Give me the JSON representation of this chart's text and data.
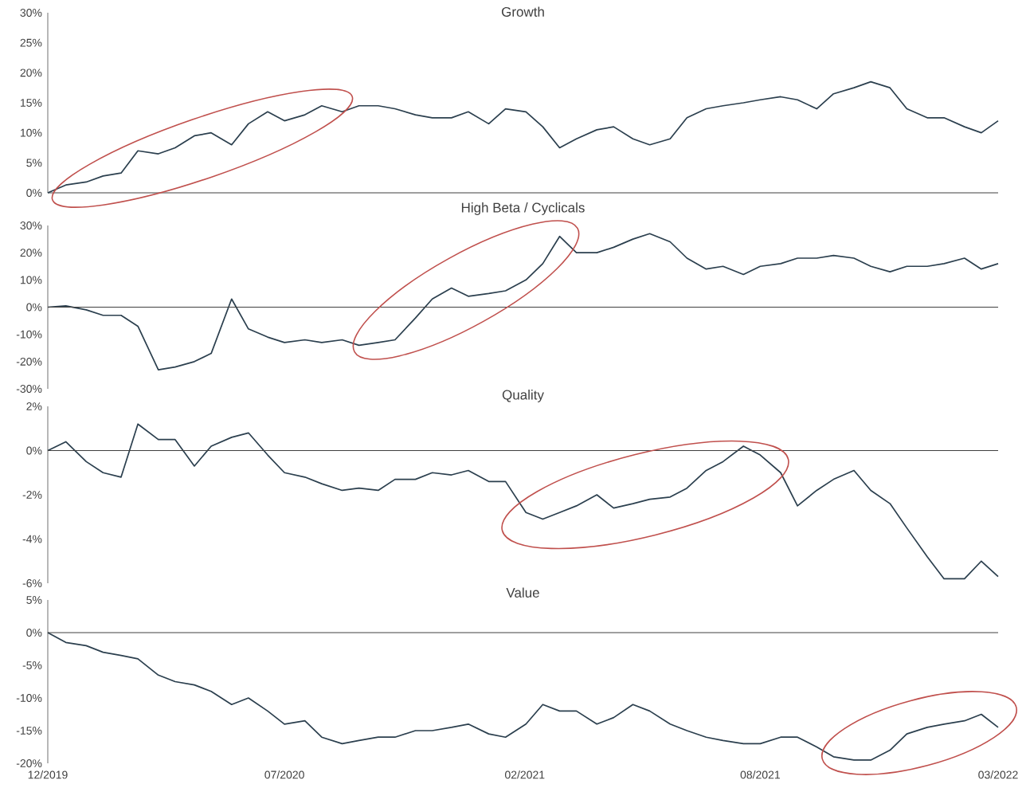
{
  "chart_data": [
    {
      "type": "line",
      "title": "Growth",
      "color": "#2b3f4e",
      "tick_labels": "y",
      "x": [
        "2019-12-31",
        "2020-01-15",
        "2020-02-01",
        "2020-02-15",
        "2020-03-01",
        "2020-03-15",
        "2020-04-01",
        "2020-04-15",
        "2020-05-01",
        "2020-05-15",
        "2020-06-01",
        "2020-06-15",
        "2020-07-01",
        "2020-07-15",
        "2020-08-01",
        "2020-08-15",
        "2020-09-01",
        "2020-09-15",
        "2020-10-01",
        "2020-10-15",
        "2020-11-01",
        "2020-11-15",
        "2020-12-01",
        "2020-12-15",
        "2021-01-01",
        "2021-01-15",
        "2021-02-01",
        "2021-02-15",
        "2021-03-01",
        "2021-03-15",
        "2021-04-01",
        "2021-04-15",
        "2021-05-01",
        "2021-05-15",
        "2021-06-01",
        "2021-06-15",
        "2021-07-01",
        "2021-07-15",
        "2021-08-01",
        "2021-08-15",
        "2021-09-01",
        "2021-09-15",
        "2021-10-01",
        "2021-10-15",
        "2021-11-01",
        "2021-11-15",
        "2021-12-01",
        "2021-12-15",
        "2022-01-01",
        "2022-01-15",
        "2022-02-01",
        "2022-02-15",
        "2022-03-01"
      ],
      "values": [
        0,
        1.3,
        1.8,
        2.8,
        3.3,
        7,
        6.5,
        7.5,
        9.5,
        10,
        8,
        11.5,
        13.5,
        12,
        13,
        14.5,
        13.5,
        14.5,
        14.5,
        14,
        13,
        12.5,
        12.5,
        13.5,
        11.5,
        14,
        13.5,
        11,
        7.5,
        9,
        10.5,
        11,
        9,
        8,
        9,
        12.5,
        14,
        14.5,
        15,
        15.5,
        16,
        15.5,
        14,
        16.5,
        17.5,
        18.5,
        17.5,
        14,
        12.5,
        12.5,
        11,
        10,
        12
      ],
      "xlim": [
        "2019-12-31",
        "2022-03-01"
      ],
      "ylim": [
        0,
        30
      ],
      "yticks": [
        {
          "value": 0,
          "label": "0%"
        },
        {
          "value": 5,
          "label": "5%"
        },
        {
          "value": 10,
          "label": "10%"
        },
        {
          "value": 15,
          "label": "15%"
        },
        {
          "value": 20,
          "label": "20%"
        },
        {
          "value": 25,
          "label": "25%"
        },
        {
          "value": 30,
          "label": "30%"
        }
      ],
      "grid": false
    },
    {
      "type": "line",
      "title": "High Beta / Cyclicals",
      "color": "#2b3f4e",
      "tick_labels": "y",
      "x": [
        "2019-12-31",
        "2020-01-15",
        "2020-02-01",
        "2020-02-15",
        "2020-03-01",
        "2020-03-15",
        "2020-04-01",
        "2020-04-15",
        "2020-05-01",
        "2020-05-15",
        "2020-06-01",
        "2020-06-15",
        "2020-07-01",
        "2020-07-15",
        "2020-08-01",
        "2020-08-15",
        "2020-09-01",
        "2020-09-15",
        "2020-10-01",
        "2020-10-15",
        "2020-11-01",
        "2020-11-15",
        "2020-12-01",
        "2020-12-15",
        "2021-01-01",
        "2021-01-15",
        "2021-02-01",
        "2021-02-15",
        "2021-03-01",
        "2021-03-15",
        "2021-04-01",
        "2021-04-15",
        "2021-05-01",
        "2021-05-15",
        "2021-06-01",
        "2021-06-15",
        "2021-07-01",
        "2021-07-15",
        "2021-08-01",
        "2021-08-15",
        "2021-09-01",
        "2021-09-15",
        "2021-10-01",
        "2021-10-15",
        "2021-11-01",
        "2021-11-15",
        "2021-12-01",
        "2021-12-15",
        "2022-01-01",
        "2022-01-15",
        "2022-02-01",
        "2022-02-15",
        "2022-03-01"
      ],
      "values": [
        0,
        0.5,
        -1,
        -3,
        -3,
        -7,
        -23,
        -22,
        -20,
        -17,
        3,
        -8,
        -11,
        -13,
        -12,
        -13,
        -12,
        -14,
        -13,
        -12,
        -4,
        3,
        7,
        4,
        5,
        6,
        10,
        16,
        26,
        20,
        20,
        22,
        25,
        27,
        24,
        18,
        14,
        15,
        12,
        15,
        16,
        18,
        18,
        19,
        18,
        15,
        13,
        15,
        15,
        16,
        18,
        14,
        16
      ],
      "xlim": [
        "2019-12-31",
        "2022-03-01"
      ],
      "ylim": [
        -30,
        30
      ],
      "yticks": [
        {
          "value": -30,
          "label": "-30%"
        },
        {
          "value": -20,
          "label": "-20%"
        },
        {
          "value": -10,
          "label": "-10%"
        },
        {
          "value": 0,
          "label": "0%"
        },
        {
          "value": 10,
          "label": "10%"
        },
        {
          "value": 20,
          "label": "20%"
        },
        {
          "value": 30,
          "label": "30%"
        }
      ],
      "ref_lines": [
        {
          "axis": "y",
          "value": 0,
          "color": "#404040"
        }
      ]
    },
    {
      "type": "line",
      "title": "Quality",
      "color": "#2b3f4e",
      "tick_labels": "y",
      "x": [
        "2019-12-31",
        "2020-01-15",
        "2020-02-01",
        "2020-02-15",
        "2020-03-01",
        "2020-03-15",
        "2020-04-01",
        "2020-04-15",
        "2020-05-01",
        "2020-05-15",
        "2020-06-01",
        "2020-06-15",
        "2020-07-01",
        "2020-07-15",
        "2020-08-01",
        "2020-08-15",
        "2020-09-01",
        "2020-09-15",
        "2020-10-01",
        "2020-10-15",
        "2020-11-01",
        "2020-11-15",
        "2020-12-01",
        "2020-12-15",
        "2021-01-01",
        "2021-01-15",
        "2021-02-01",
        "2021-02-15",
        "2021-03-01",
        "2021-03-15",
        "2021-04-01",
        "2021-04-15",
        "2021-05-01",
        "2021-05-15",
        "2021-06-01",
        "2021-06-15",
        "2021-07-01",
        "2021-07-15",
        "2021-08-01",
        "2021-08-15",
        "2021-09-01",
        "2021-09-15",
        "2021-10-01",
        "2021-10-15",
        "2021-11-01",
        "2021-11-15",
        "2021-12-01",
        "2021-12-15",
        "2022-01-01",
        "2022-01-15",
        "2022-02-01",
        "2022-02-15",
        "2022-03-01"
      ],
      "values": [
        0,
        0.4,
        -0.5,
        -1,
        -1.2,
        1.2,
        0.5,
        0.5,
        -0.7,
        0.2,
        0.6,
        0.8,
        -0.2,
        -1,
        -1.2,
        -1.5,
        -1.8,
        -1.7,
        -1.8,
        -1.3,
        -1.3,
        -1,
        -1.1,
        -0.9,
        -1.4,
        -1.4,
        -2.8,
        -3.1,
        -2.8,
        -2.5,
        -2,
        -2.6,
        -2.4,
        -2.2,
        -2.1,
        -1.7,
        -0.9,
        -0.5,
        0.2,
        -0.2,
        -1,
        -2.5,
        -1.8,
        -1.3,
        -0.9,
        -1.8,
        -2.4,
        -3.5,
        -4.8,
        -5.8,
        -5.8,
        -5,
        -5.7
      ],
      "xlim": [
        "2019-12-31",
        "2022-03-01"
      ],
      "ylim": [
        -6,
        2
      ],
      "yticks": [
        {
          "value": -6,
          "label": "-6%"
        },
        {
          "value": -4,
          "label": "-4%"
        },
        {
          "value": -2,
          "label": "-2%"
        },
        {
          "value": 0,
          "label": "0%"
        },
        {
          "value": 2,
          "label": "2%"
        }
      ],
      "ref_lines": [
        {
          "axis": "y",
          "value": 0,
          "color": "#404040"
        }
      ]
    },
    {
      "type": "line",
      "title": "Value",
      "color": "#2b3f4e",
      "x": [
        "2019-12-31",
        "2020-01-15",
        "2020-02-01",
        "2020-02-15",
        "2020-03-01",
        "2020-03-15",
        "2020-04-01",
        "2020-04-15",
        "2020-05-01",
        "2020-05-15",
        "2020-06-01",
        "2020-06-15",
        "2020-07-01",
        "2020-07-15",
        "2020-08-01",
        "2020-08-15",
        "2020-09-01",
        "2020-09-15",
        "2020-10-01",
        "2020-10-15",
        "2020-11-01",
        "2020-11-15",
        "2020-12-01",
        "2020-12-15",
        "2021-01-01",
        "2021-01-15",
        "2021-02-01",
        "2021-02-15",
        "2021-03-01",
        "2021-03-15",
        "2021-04-01",
        "2021-04-15",
        "2021-05-01",
        "2021-05-15",
        "2021-06-01",
        "2021-06-15",
        "2021-07-01",
        "2021-07-15",
        "2021-08-01",
        "2021-08-15",
        "2021-09-01",
        "2021-09-15",
        "2021-10-01",
        "2021-10-15",
        "2021-11-01",
        "2021-11-15",
        "2021-12-01",
        "2021-12-15",
        "2022-01-01",
        "2022-01-15",
        "2022-02-01",
        "2022-02-15",
        "2022-03-01"
      ],
      "values": [
        0,
        -1.5,
        -2,
        -3,
        -3.5,
        -4,
        -6.5,
        -7.5,
        -8,
        -9,
        -11,
        -10,
        -12,
        -14,
        -13.5,
        -16,
        -17,
        -16.5,
        -16,
        -16,
        -15,
        -15,
        -14.5,
        -14,
        -15.5,
        -16,
        -14,
        -11,
        -12,
        -12,
        -14,
        -13,
        -11,
        -12,
        -14,
        -15,
        -16,
        -16.5,
        -17,
        -17,
        -16,
        -16,
        -17.5,
        -19,
        -19.5,
        -19.5,
        -18,
        -15.5,
        -14.5,
        -14,
        -13.5,
        -12.5,
        -14.5
      ],
      "xlim": [
        "2019-12-31",
        "2022-03-01"
      ],
      "ylim": [
        -20,
        5
      ],
      "xticks": [
        {
          "value": "2019-12-31",
          "label": "12/2019"
        },
        {
          "value": "2020-07-15",
          "label": "07/2020"
        },
        {
          "value": "2021-01-31",
          "label": "02/2021"
        },
        {
          "value": "2021-08-15",
          "label": "08/2021"
        },
        {
          "value": "2022-03-01",
          "label": "03/2022"
        }
      ],
      "yticks": [
        {
          "value": -20,
          "label": "-20%"
        },
        {
          "value": -15,
          "label": "-15%"
        },
        {
          "value": -10,
          "label": "-10%"
        },
        {
          "value": -5,
          "label": "-5%"
        },
        {
          "value": 0,
          "label": "0%"
        },
        {
          "value": 5,
          "label": "5%"
        }
      ],
      "ref_lines": [
        {
          "axis": "y",
          "value": 0,
          "color": "#404040"
        }
      ]
    }
  ]
}
